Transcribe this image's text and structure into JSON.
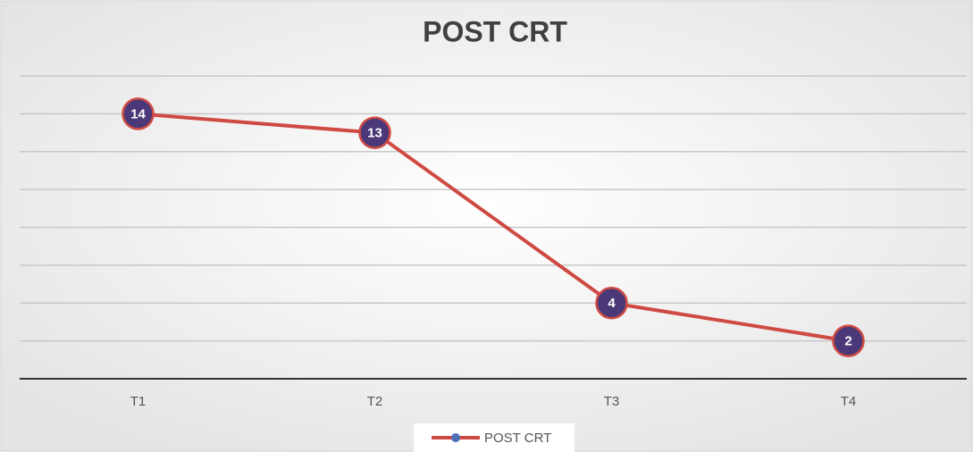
{
  "chart_data": {
    "type": "line",
    "title": "POST CRT",
    "categories": [
      "T1",
      "T2",
      "T3",
      "T4"
    ],
    "series": [
      {
        "name": "POST CRT",
        "color": "#cf4a43",
        "marker_color": "#4a3878",
        "values": [
          14,
          13,
          4,
          2
        ]
      }
    ],
    "ylim": [
      0,
      16
    ],
    "yticks": [
      0,
      2,
      4,
      6,
      8,
      10,
      12,
      14,
      16
    ],
    "grid": true,
    "legend": "bottom",
    "data_labels": true
  }
}
